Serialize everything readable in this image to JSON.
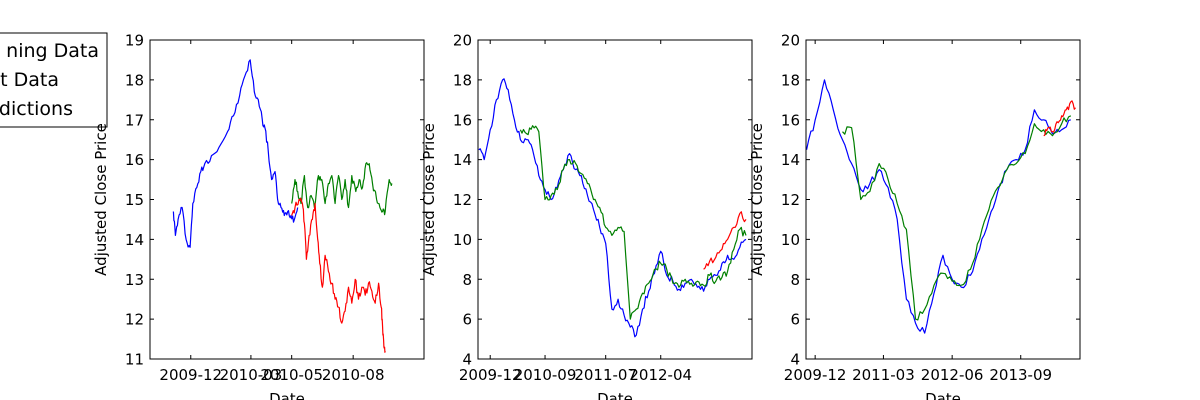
{
  "legend": {
    "entries": [
      "Training Data",
      "Test Data",
      "Predictions"
    ],
    "visible_text": [
      "ning Data",
      "t Data",
      "dictions"
    ],
    "colors": [
      "#0000ff",
      "#007f00",
      "#ff0000"
    ],
    "placement": "upper-left, clipped by figure edge"
  },
  "chart_data": [
    {
      "type": "line",
      "title": "",
      "xlabel": "Date",
      "ylabel": "Adjusted Close Price",
      "ylim": [
        11,
        19
      ],
      "yticks": [
        11,
        12,
        13,
        14,
        15,
        16,
        17,
        18,
        19
      ],
      "xlim": [
        "2009-10-01",
        "2010-11-15"
      ],
      "xticks": [
        "2009-12",
        "2010-03",
        "2010-05",
        "2010-08"
      ],
      "grid": false,
      "series": [
        {
          "name": "Training Data",
          "color": "#0000ff",
          "x": [
            "2009-11-05",
            "2009-11-08",
            "2009-11-12",
            "2009-11-18",
            "2009-11-24",
            "2009-11-30",
            "2009-12-04",
            "2009-12-10",
            "2009-12-16",
            "2009-12-22",
            "2010-01-01",
            "2010-01-12",
            "2010-01-25",
            "2010-02-03",
            "2010-02-12",
            "2010-02-20",
            "2010-02-28",
            "2010-03-06",
            "2010-03-12",
            "2010-03-18",
            "2010-03-22",
            "2010-03-27",
            "2010-04-01",
            "2010-04-06",
            "2010-04-10",
            "2010-04-15",
            "2010-04-20",
            "2010-04-25",
            "2010-04-30",
            "2010-05-05",
            "2010-05-10"
          ],
          "y": [
            14.7,
            14.1,
            14.5,
            14.8,
            14.0,
            13.8,
            14.9,
            15.3,
            15.7,
            15.9,
            16.1,
            16.3,
            16.7,
            17.1,
            17.6,
            18.1,
            18.5,
            17.7,
            17.5,
            17.0,
            16.8,
            16.2,
            15.5,
            15.7,
            15.0,
            14.8,
            14.6,
            14.7,
            14.6,
            14.5,
            14.8
          ]
        },
        {
          "name": "Test Data",
          "color": "#007f00",
          "x": [
            "2010-05-01",
            "2010-05-06",
            "2010-05-10",
            "2010-05-15",
            "2010-05-20",
            "2010-05-25",
            "2010-05-30",
            "2010-06-04",
            "2010-06-10",
            "2010-06-15",
            "2010-06-20",
            "2010-06-25",
            "2010-06-30",
            "2010-07-05",
            "2010-07-10",
            "2010-07-15",
            "2010-07-20",
            "2010-07-25",
            "2010-07-30",
            "2010-08-05",
            "2010-08-10",
            "2010-08-15",
            "2010-08-20",
            "2010-08-25",
            "2010-08-30",
            "2010-09-05",
            "2010-09-10",
            "2010-09-14",
            "2010-09-18",
            "2010-09-24",
            "2010-09-28"
          ],
          "y": [
            14.9,
            15.5,
            15.2,
            14.9,
            15.6,
            14.8,
            15.1,
            14.8,
            15.6,
            15.5,
            14.9,
            15.4,
            15.6,
            14.9,
            15.6,
            15.0,
            15.5,
            14.8,
            15.6,
            15.2,
            15.5,
            15.3,
            15.9,
            15.9,
            15.4,
            15.0,
            14.8,
            14.7,
            14.7,
            15.5,
            15.4
          ]
        },
        {
          "name": "Predictions",
          "color": "#ff0000",
          "x": [
            "2010-05-01",
            "2010-05-06",
            "2010-05-12",
            "2010-05-17",
            "2010-05-20",
            "2010-05-23",
            "2010-05-27",
            "2010-06-01",
            "2010-06-05",
            "2010-06-09",
            "2010-06-12",
            "2010-06-16",
            "2010-06-20",
            "2010-06-25",
            "2010-06-30",
            "2010-07-05",
            "2010-07-10",
            "2010-07-15",
            "2010-07-20",
            "2010-07-25",
            "2010-07-30",
            "2010-08-04",
            "2010-08-09",
            "2010-08-14",
            "2010-08-19",
            "2010-08-24",
            "2010-08-29",
            "2010-09-03",
            "2010-09-08",
            "2010-09-12",
            "2010-09-14",
            "2010-09-16",
            "2010-09-18"
          ],
          "y": [
            14.6,
            14.8,
            15.0,
            14.9,
            14.4,
            13.5,
            14.1,
            14.5,
            14.9,
            14.0,
            13.4,
            12.8,
            13.6,
            13.2,
            12.9,
            12.5,
            12.3,
            11.9,
            12.2,
            12.8,
            12.4,
            13.0,
            12.5,
            12.8,
            12.6,
            12.9,
            12.7,
            12.4,
            12.9,
            12.3,
            11.8,
            11.3,
            11.2
          ]
        }
      ]
    },
    {
      "type": "line",
      "title": "",
      "xlabel": "Date",
      "ylabel": "Adjusted Close Price",
      "ylim": [
        4,
        20
      ],
      "yticks": [
        4,
        6,
        8,
        10,
        12,
        14,
        16,
        18,
        20
      ],
      "xlim": [
        "2009-10-01",
        "2013-07-01"
      ],
      "xticks": [
        "2009-12",
        "2010-09",
        "2011-07",
        "2012-04"
      ],
      "grid": false,
      "series": [
        {
          "name": "Training Data",
          "color": "#0000ff",
          "x": [
            "2009-10-05",
            "2009-11-01",
            "2009-12-01",
            "2010-01-01",
            "2010-02-01",
            "2010-03-01",
            "2010-04-01",
            "2010-05-01",
            "2010-06-01",
            "2010-07-01",
            "2010-08-01",
            "2010-09-01",
            "2010-10-01",
            "2010-11-01",
            "2010-12-01",
            "2011-01-01",
            "2011-02-01",
            "2011-03-01",
            "2011-04-01",
            "2011-05-01",
            "2011-06-01",
            "2011-07-01",
            "2011-08-01",
            "2011-09-01",
            "2011-10-01",
            "2011-11-01",
            "2011-12-01",
            "2012-01-01",
            "2012-02-01",
            "2012-03-01",
            "2012-04-01",
            "2012-05-01",
            "2012-06-01",
            "2012-07-01",
            "2012-08-01",
            "2012-09-01",
            "2012-10-01",
            "2012-11-01",
            "2012-12-01",
            "2013-01-01",
            "2013-02-01",
            "2013-03-01",
            "2013-04-01",
            "2013-05-01",
            "2013-06-01"
          ],
          "y": [
            14.5,
            14.0,
            15.5,
            17.0,
            18.0,
            17.5,
            16.0,
            15.0,
            15.0,
            14.5,
            13.2,
            12.5,
            12.0,
            12.6,
            13.5,
            14.3,
            13.5,
            13.2,
            12.2,
            11.5,
            10.6,
            9.8,
            6.5,
            7.0,
            6.2,
            5.6,
            5.2,
            6.5,
            7.4,
            8.3,
            9.4,
            8.2,
            7.9,
            7.5,
            7.8,
            8.0,
            7.6,
            7.4,
            8.0,
            8.2,
            8.8,
            9.2,
            9.0,
            9.6,
            10.0
          ]
        },
        {
          "name": "Test Data",
          "color": "#007f00",
          "x": [
            "2010-05-01",
            "2010-06-01",
            "2010-07-01",
            "2010-08-01",
            "2010-09-01",
            "2010-10-01",
            "2010-11-01",
            "2010-12-01",
            "2011-01-01",
            "2011-02-01",
            "2011-03-01",
            "2011-04-01",
            "2011-05-01",
            "2011-06-01",
            "2011-07-01",
            "2011-08-01",
            "2011-09-01",
            "2011-10-01",
            "2011-11-01",
            "2011-12-01",
            "2012-01-01",
            "2012-02-01",
            "2012-03-01",
            "2012-04-01",
            "2012-05-01",
            "2012-06-01",
            "2012-07-01",
            "2012-08-01",
            "2012-09-01",
            "2012-10-01",
            "2012-11-01",
            "2012-12-01",
            "2013-01-01",
            "2013-02-01",
            "2013-03-01",
            "2013-04-01",
            "2013-05-01",
            "2013-06-01"
          ],
          "y": [
            15.5,
            15.3,
            15.7,
            15.4,
            12.0,
            12.2,
            12.5,
            13.5,
            14.0,
            13.8,
            13.3,
            12.8,
            12.0,
            11.6,
            10.6,
            10.2,
            10.6,
            10.4,
            6.0,
            6.5,
            7.3,
            7.8,
            8.5,
            8.8,
            8.5,
            7.8,
            7.6,
            8.0,
            7.8,
            7.9,
            7.7,
            8.2,
            7.9,
            8.1,
            8.4,
            9.5,
            10.5,
            10.2
          ]
        },
        {
          "name": "Predictions",
          "color": "#ff0000",
          "x": [
            "2012-11-01",
            "2012-12-01",
            "2013-01-01",
            "2013-02-01",
            "2013-03-01",
            "2013-04-01",
            "2013-05-01",
            "2013-06-01"
          ],
          "y": [
            8.5,
            8.9,
            9.1,
            9.5,
            10.0,
            10.6,
            11.3,
            11.0
          ]
        }
      ]
    },
    {
      "type": "line",
      "title": "",
      "xlabel": "Date",
      "ylabel": "Adjusted Close Price",
      "ylim": [
        4,
        20
      ],
      "yticks": [
        4,
        6,
        8,
        10,
        12,
        14,
        16,
        18,
        20
      ],
      "xlim": [
        "2009-10-01",
        "2014-10-01"
      ],
      "xticks": [
        "2009-12",
        "2011-03",
        "2012-06",
        "2013-09"
      ],
      "grid": false,
      "series": [
        {
          "name": "Training Data",
          "color": "#0000ff",
          "x": [
            "2009-10-05",
            "2009-12-01",
            "2010-02-01",
            "2010-04-01",
            "2010-06-01",
            "2010-08-01",
            "2010-10-01",
            "2010-12-01",
            "2011-02-01",
            "2011-04-01",
            "2011-06-01",
            "2011-08-01",
            "2011-10-01",
            "2011-12-01",
            "2012-02-01",
            "2012-04-01",
            "2012-06-01",
            "2012-08-01",
            "2012-10-01",
            "2012-12-01",
            "2013-02-01",
            "2013-04-01",
            "2013-06-01",
            "2013-08-01",
            "2013-10-01",
            "2013-12-01",
            "2014-02-01",
            "2014-04-01",
            "2014-06-01",
            "2014-08-01"
          ],
          "y": [
            14.5,
            16.0,
            18.0,
            16.5,
            15.0,
            13.8,
            12.5,
            12.8,
            13.5,
            12.6,
            11.0,
            7.0,
            5.8,
            5.3,
            7.3,
            9.2,
            8.0,
            7.6,
            8.2,
            9.5,
            11.0,
            12.4,
            13.5,
            14.0,
            14.5,
            16.5,
            16.0,
            15.3,
            15.5,
            16.0
          ]
        },
        {
          "name": "Test Data",
          "color": "#007f00",
          "x": [
            "2010-06-01",
            "2010-08-01",
            "2010-10-01",
            "2010-12-01",
            "2011-02-01",
            "2011-04-01",
            "2011-06-01",
            "2011-08-01",
            "2011-10-01",
            "2011-12-01",
            "2012-02-01",
            "2012-04-01",
            "2012-06-01",
            "2012-08-01",
            "2012-10-01",
            "2012-12-01",
            "2013-02-01",
            "2013-04-01",
            "2013-06-01",
            "2013-08-01",
            "2013-10-01",
            "2013-12-01",
            "2014-02-01",
            "2014-04-01",
            "2014-06-01",
            "2014-08-01"
          ],
          "y": [
            15.4,
            15.6,
            12.0,
            12.4,
            13.8,
            13.0,
            11.8,
            10.5,
            6.0,
            6.5,
            7.7,
            8.3,
            7.9,
            7.7,
            8.5,
            10.0,
            11.5,
            12.6,
            13.5,
            13.8,
            14.3,
            15.8,
            15.5,
            15.2,
            15.8,
            16.2
          ]
        },
        {
          "name": "Predictions",
          "color": "#ff0000",
          "x": [
            "2014-02-01",
            "2014-03-01",
            "2014-04-01",
            "2014-05-01",
            "2014-06-01",
            "2014-07-01",
            "2014-08-01",
            "2014-09-01"
          ],
          "y": [
            15.2,
            15.6,
            15.4,
            15.9,
            16.2,
            16.5,
            16.9,
            16.6
          ]
        }
      ]
    }
  ]
}
